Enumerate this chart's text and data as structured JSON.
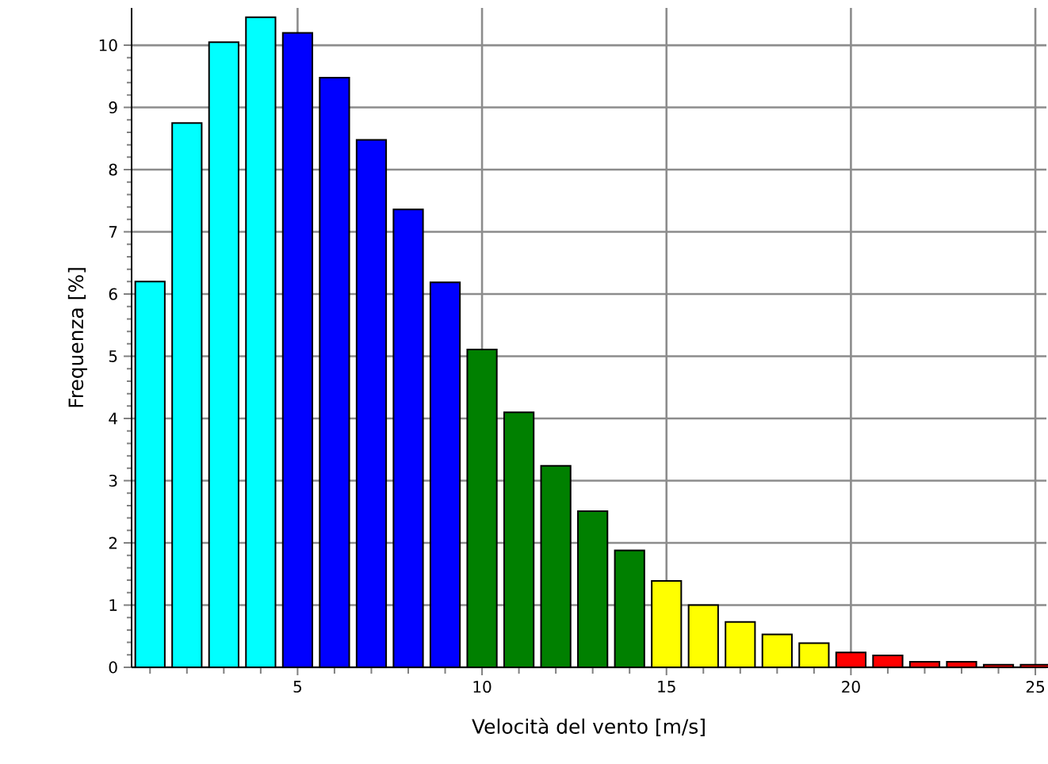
{
  "chart_data": {
    "type": "bar",
    "xlabel": "Velocità del vento [m/s]",
    "ylabel": "Frequenza [%]",
    "x": [
      1,
      2,
      3,
      4,
      5,
      6,
      7,
      8,
      9,
      10,
      11,
      12,
      13,
      14,
      15,
      16,
      17,
      18,
      19,
      20,
      21,
      22,
      23,
      24,
      25
    ],
    "values": [
      6.2,
      8.75,
      10.05,
      10.45,
      10.2,
      9.48,
      8.48,
      7.36,
      6.19,
      5.11,
      4.1,
      3.24,
      2.51,
      1.88,
      1.39,
      1.0,
      0.73,
      0.53,
      0.39,
      0.24,
      0.19,
      0.09,
      0.09,
      0.04,
      0.04
    ],
    "colors": [
      "#00ffff",
      "#00ffff",
      "#00ffff",
      "#00ffff",
      "#0000ff",
      "#0000ff",
      "#0000ff",
      "#0000ff",
      "#0000ff",
      "#008000",
      "#008000",
      "#008000",
      "#008000",
      "#008000",
      "#ffff00",
      "#ffff00",
      "#ffff00",
      "#ffff00",
      "#ffff00",
      "#ff0000",
      "#ff0000",
      "#ff0000",
      "#ff0000",
      "#ff0000",
      "#ff0000"
    ],
    "xlim": [
      0.5,
      25.3
    ],
    "ylim": [
      0,
      10.6
    ],
    "xticks": [
      {
        "value": 1,
        "label": null
      },
      {
        "value": 2,
        "label": null
      },
      {
        "value": 3,
        "label": null
      },
      {
        "value": 4,
        "label": null
      },
      5,
      {
        "value": 6,
        "label": null
      },
      {
        "value": 7,
        "label": null
      },
      {
        "value": 8,
        "label": null
      },
      {
        "value": 9,
        "label": null
      },
      10,
      {
        "value": 11,
        "label": null
      },
      {
        "value": 12,
        "label": null
      },
      {
        "value": 13,
        "label": null
      },
      {
        "value": 14,
        "label": null
      },
      15,
      {
        "value": 16,
        "label": null
      },
      {
        "value": 17,
        "label": null
      },
      {
        "value": 18,
        "label": null
      },
      {
        "value": 19,
        "label": null
      },
      20,
      {
        "value": 21,
        "label": null
      },
      {
        "value": 22,
        "label": null
      },
      {
        "value": 23,
        "label": null
      },
      {
        "value": 24,
        "label": null
      },
      25
    ],
    "yticks": [
      0,
      1,
      2,
      3,
      4,
      5,
      6,
      7,
      8,
      9,
      10
    ],
    "grid": true
  }
}
